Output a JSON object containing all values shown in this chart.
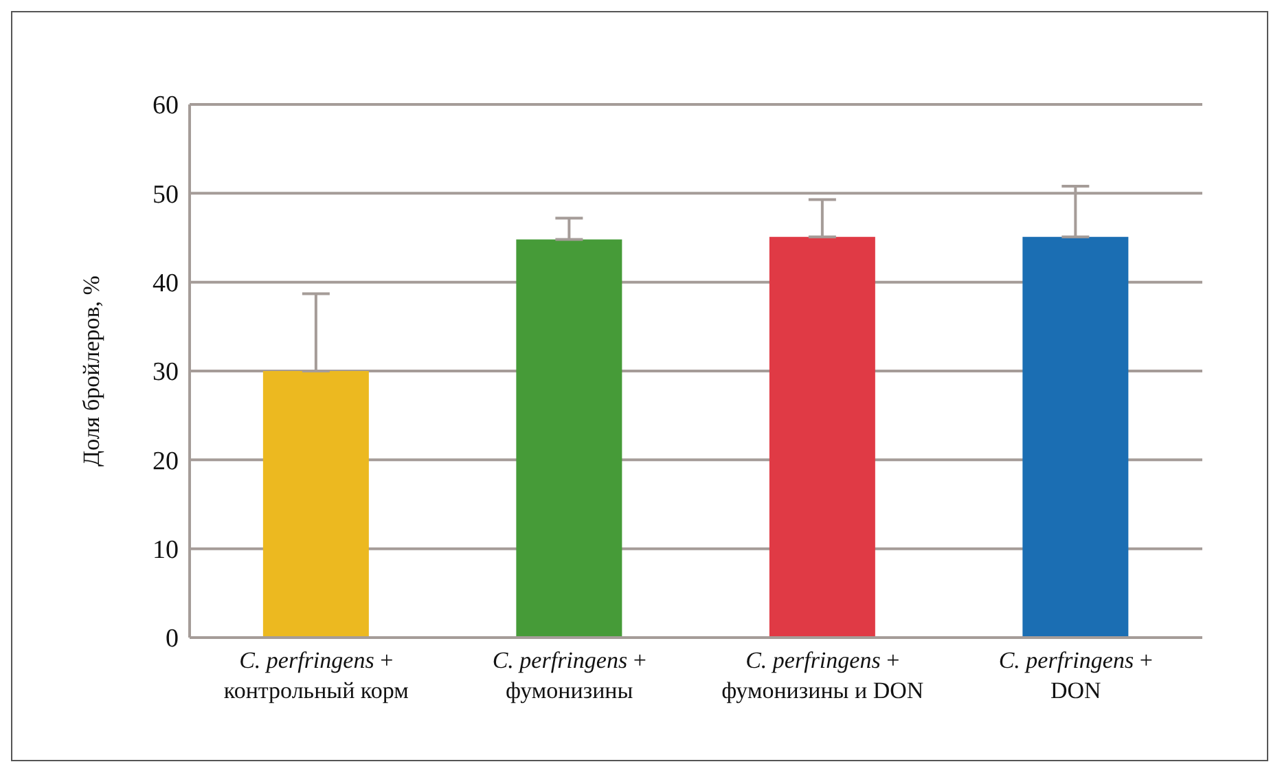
{
  "chart_data": {
    "type": "bar",
    "ylabel": "Доля бройлеров, %",
    "categories": [
      "C. perfringens +\nконтрольный корм",
      "C. perfringens +\nфумонизины",
      "C. perfringens +\nфумонизины и DON",
      "C. perfringens +\nDON"
    ],
    "values": [
      30.0,
      44.8,
      45.1,
      45.1
    ],
    "colors": [
      "#ecb920",
      "#469b38",
      "#e03a45",
      "#1b6eb3"
    ],
    "errors": [
      [
        30.0,
        38.7
      ],
      [
        44.8,
        47.2
      ],
      [
        45.1,
        49.3
      ],
      [
        45.1,
        50.8
      ]
    ],
    "ylim": [
      0,
      60
    ],
    "yticks": [
      0,
      10,
      20,
      30,
      40,
      50,
      60
    ],
    "grid": "y"
  }
}
